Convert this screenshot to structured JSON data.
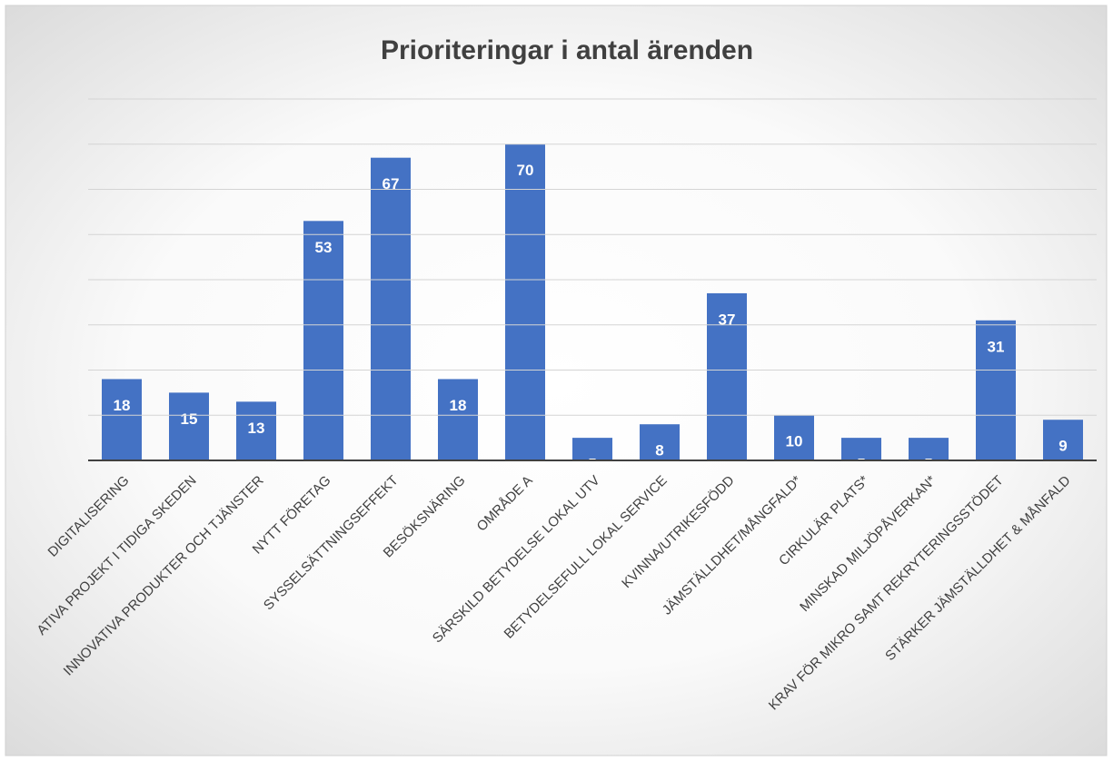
{
  "chart_data": {
    "type": "bar",
    "title": "Prioriteringar i antal ärenden",
    "categories": [
      "DIGITALISERING",
      "ATIVA PROJEKT I TIDIGA SKEDEN",
      "INNOVATIVA PRODUKTER OCH TJÄNSTER",
      "NYTT FÖRETAG",
      "SYSSELSÄTTNINGSEFFEKT",
      "BESÖKSNÄRING",
      "OMRÅDE A",
      "SÄRSKILD BETYDELSE LOKAL UTV",
      "BETYDELSEFULL LOKAL SERVICE",
      "KVINNA/UTRIKESFÖDD",
      "JÄMSTÄLLDHET/MÅNGFALD*",
      "CIRKULÄR PLATS*",
      "MINSKAD MILJÖPÅVERKAN*",
      "KRAV FÖR MIKRO SAMT REKRYTERINGSSTÖDET",
      "STÄRKER JÄMSTÄLLDHET & MÅNFALD"
    ],
    "values": [
      18,
      15,
      13,
      53,
      67,
      18,
      70,
      5,
      8,
      37,
      10,
      5,
      5,
      31,
      9
    ],
    "color": "#4472c4",
    "ylim": [
      0,
      80
    ],
    "yticks": [
      0,
      10,
      20,
      30,
      40,
      50,
      60,
      70,
      80
    ],
    "grid": true
  }
}
